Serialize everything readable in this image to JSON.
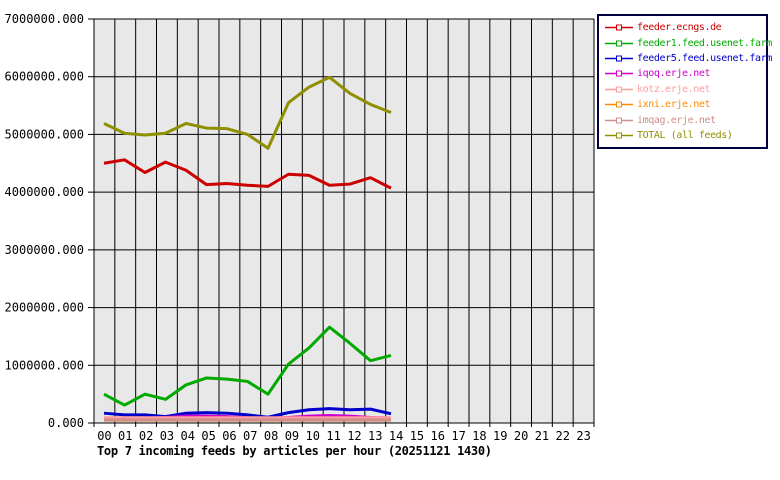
{
  "chart_data": {
    "type": "line",
    "title": "Top 7 incoming feeds by articles per hour (20251121 1430)",
    "xlabel": "",
    "ylabel": "",
    "grid": true,
    "legend_position": "top-right",
    "plot_bg_color": "#e8e8e8",
    "grid_color": "#000000",
    "legend_border_color": "#000040",
    "ylim": [
      0,
      7000000
    ],
    "y_tick_step": 1000000,
    "y_tick_labels": [
      "0.000",
      "1000000.000",
      "2000000.000",
      "3000000.000",
      "4000000.000",
      "5000000.000",
      "6000000.000",
      "7000000.000"
    ],
    "x_tick_labels": [
      "00",
      "01",
      "02",
      "03",
      "04",
      "05",
      "06",
      "07",
      "08",
      "09",
      "10",
      "11",
      "12",
      "13",
      "14",
      "15",
      "16",
      "17",
      "18",
      "19",
      "20",
      "21",
      "22",
      "23"
    ],
    "data_hours": [
      "00",
      "01",
      "02",
      "03",
      "04",
      "05",
      "06",
      "07",
      "08",
      "09",
      "10",
      "11",
      "12",
      "13",
      "14"
    ],
    "series": [
      {
        "name": "feeder.ecngs.de",
        "color": "#cc0000",
        "values": [
          4500000,
          4560000,
          4340000,
          4520000,
          4380000,
          4130000,
          4150000,
          4120000,
          4100000,
          4310000,
          4290000,
          4120000,
          4140000,
          4250000,
          4070000
        ]
      },
      {
        "name": "feeder1.feed.usenet.farm",
        "color": "#00aa00",
        "values": [
          500000,
          310000,
          500000,
          410000,
          660000,
          780000,
          760000,
          720000,
          500000,
          1020000,
          1300000,
          1660000,
          1380000,
          1080000,
          1170000
        ]
      },
      {
        "name": "feeder5.feed.usenet.farm",
        "color": "#0000cc",
        "values": [
          170000,
          140000,
          140000,
          110000,
          170000,
          180000,
          170000,
          140000,
          100000,
          180000,
          230000,
          250000,
          230000,
          240000,
          160000
        ]
      },
      {
        "name": "iqoq.erje.net",
        "color": "#cc00cc",
        "values": [
          80000,
          80000,
          85000,
          95000,
          120000,
          120000,
          110000,
          90000,
          80000,
          95000,
          120000,
          130000,
          120000,
          95000,
          85000
        ]
      },
      {
        "name": "kotz.erje.net",
        "color": "#ff9c9c",
        "values": [
          90000,
          90000,
          90000,
          90000,
          90000,
          90000,
          90000,
          90000,
          90000,
          90000,
          90000,
          90000,
          90000,
          90000,
          90000
        ]
      },
      {
        "name": "ixni.erje.net",
        "color": "#ff8800",
        "values": [
          50000,
          50000,
          50000,
          50000,
          50000,
          50000,
          50000,
          50000,
          50000,
          50000,
          50000,
          50000,
          50000,
          50000,
          50000
        ]
      },
      {
        "name": "imqag.erje.net",
        "color": "#cf8d8d",
        "values": [
          55000,
          55000,
          55000,
          55000,
          55000,
          55000,
          55000,
          55000,
          55000,
          55000,
          55000,
          55000,
          55000,
          55000,
          55000
        ]
      },
      {
        "name": "TOTAL (all feeds)",
        "color": "#8f8f00",
        "values": [
          5190000,
          5020000,
          4990000,
          5020000,
          5190000,
          5110000,
          5100000,
          5000000,
          4760000,
          5550000,
          5820000,
          5990000,
          5710000,
          5520000,
          5380000
        ]
      }
    ]
  }
}
